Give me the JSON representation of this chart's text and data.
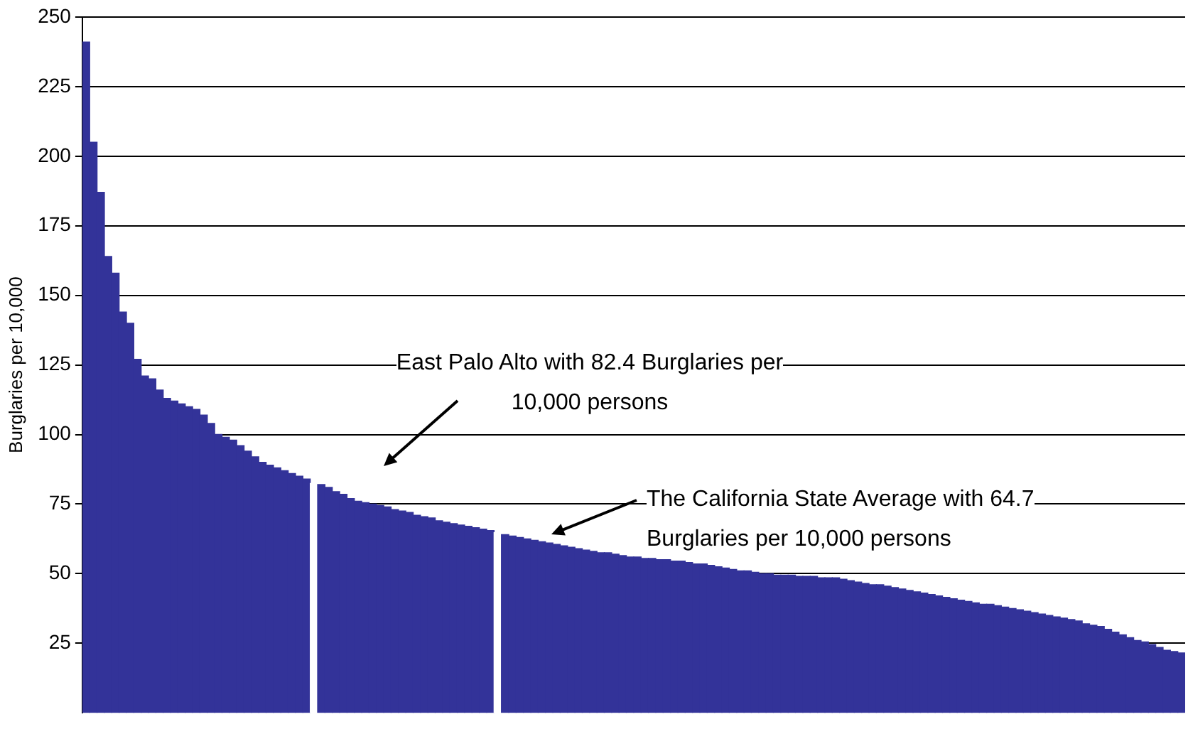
{
  "chart_data": {
    "type": "bar",
    "ylabel": "Burglaries per 10,000",
    "categories": [
      null,
      null,
      null,
      null,
      null,
      null,
      null,
      null,
      null,
      null,
      null,
      null,
      null,
      null,
      null,
      null,
      null,
      null,
      null,
      null,
      null,
      null,
      null,
      null,
      null,
      null,
      null,
      null,
      null,
      null,
      null,
      null,
      null,
      null,
      null,
      null,
      null,
      null,
      null,
      null,
      null,
      null,
      null,
      null,
      null,
      null,
      null,
      null,
      null,
      null,
      null,
      null,
      null,
      null,
      null,
      null,
      null,
      null,
      null,
      null,
      null,
      null,
      null,
      null,
      null,
      null,
      null,
      null,
      null,
      null,
      null,
      null,
      null,
      null,
      null,
      null,
      null,
      null,
      null,
      null,
      null,
      null,
      null,
      null,
      null,
      null,
      null,
      null,
      null,
      null,
      null,
      null,
      null,
      null,
      null,
      null,
      null,
      null,
      null,
      null,
      null,
      null,
      null,
      null,
      null,
      null,
      null,
      null,
      null,
      null,
      null,
      null,
      null,
      null,
      null,
      null,
      null,
      null,
      null,
      null,
      null,
      null,
      null,
      null,
      null,
      null,
      null,
      null,
      null,
      null,
      null,
      null,
      null,
      null,
      null,
      null,
      null,
      null,
      null,
      null,
      null,
      null,
      null,
      null,
      null,
      null,
      null,
      null,
      null,
      null
    ],
    "values": [
      241,
      205,
      187,
      164,
      158,
      144,
      140,
      127,
      121,
      120,
      116,
      113,
      112,
      111,
      110,
      109,
      107,
      104,
      100,
      99,
      98,
      96,
      94,
      92,
      90,
      89,
      88,
      87,
      86,
      85,
      84,
      82.4,
      82,
      81,
      79.5,
      78.5,
      77,
      76,
      75.5,
      75,
      74.5,
      74,
      73,
      72.5,
      72,
      71,
      70.5,
      70,
      69,
      68.5,
      68,
      67.5,
      67,
      66.5,
      66,
      65.5,
      64.7,
      64,
      63.5,
      63,
      62.5,
      62,
      61.5,
      61,
      60.5,
      60,
      59.5,
      59,
      58.5,
      58,
      57.5,
      57.5,
      57,
      56.5,
      56,
      56,
      55.5,
      55.5,
      55,
      55,
      54.5,
      54.5,
      54,
      53.5,
      53.5,
      53,
      52.5,
      52,
      51.5,
      51,
      51,
      50.5,
      50,
      50,
      49.5,
      49.5,
      49.5,
      49,
      49,
      49,
      48.5,
      48.5,
      48.5,
      48,
      47.5,
      47,
      46.5,
      46,
      46,
      45.5,
      45,
      44.5,
      44,
      43.5,
      43,
      42.5,
      42,
      41.5,
      41,
      40.5,
      40,
      39.5,
      39,
      39,
      38.5,
      38,
      37.5,
      37,
      36.5,
      36,
      35.5,
      35,
      34.5,
      34,
      33.5,
      33,
      32,
      31.5,
      31,
      30,
      29,
      28,
      27,
      26,
      25.5,
      24.5,
      23.5,
      22.5,
      22,
      21.5
    ],
    "colors": [
      "#333399",
      "#333399",
      "#333399",
      "#333399",
      "#333399",
      "#333399",
      "#333399",
      "#333399",
      "#333399",
      "#333399",
      "#333399",
      "#333399",
      "#333399",
      "#333399",
      "#333399",
      "#333399",
      "#333399",
      "#333399",
      "#333399",
      "#333399",
      "#333399",
      "#333399",
      "#333399",
      "#333399",
      "#333399",
      "#333399",
      "#333399",
      "#333399",
      "#333399",
      "#333399",
      "#333399",
      "#ffffff",
      "#333399",
      "#333399",
      "#333399",
      "#333399",
      "#333399",
      "#333399",
      "#333399",
      "#333399",
      "#333399",
      "#333399",
      "#333399",
      "#333399",
      "#333399",
      "#333399",
      "#333399",
      "#333399",
      "#333399",
      "#333399",
      "#333399",
      "#333399",
      "#333399",
      "#333399",
      "#333399",
      "#333399",
      "#ffffff",
      "#333399",
      "#333399",
      "#333399",
      "#333399",
      "#333399",
      "#333399",
      "#333399",
      "#333399",
      "#333399",
      "#333399",
      "#333399",
      "#333399",
      "#333399",
      "#333399",
      "#333399",
      "#333399",
      "#333399",
      "#333399",
      "#333399",
      "#333399",
      "#333399",
      "#333399",
      "#333399",
      "#333399",
      "#333399",
      "#333399",
      "#333399",
      "#333399",
      "#333399",
      "#333399",
      "#333399",
      "#333399",
      "#333399",
      "#333399",
      "#333399",
      "#333399",
      "#333399",
      "#333399",
      "#333399",
      "#333399",
      "#333399",
      "#333399",
      "#333399",
      "#333399",
      "#333399",
      "#333399",
      "#333399",
      "#333399",
      "#333399",
      "#333399",
      "#333399",
      "#333399",
      "#333399",
      "#333399",
      "#333399",
      "#333399",
      "#333399",
      "#333399",
      "#333399",
      "#333399",
      "#333399",
      "#333399",
      "#333399",
      "#333399",
      "#333399",
      "#333399",
      "#333399",
      "#333399",
      "#333399",
      "#333399",
      "#333399",
      "#333399",
      "#333399",
      "#333399",
      "#333399",
      "#333399",
      "#333399",
      "#333399",
      "#333399",
      "#333399",
      "#333399",
      "#333399",
      "#333399",
      "#333399",
      "#333399",
      "#333399",
      "#333399",
      "#333399",
      "#333399",
      "#333399",
      "#333399",
      "#333399",
      "#333399"
    ],
    "ylim": [
      0,
      250
    ],
    "yticks": [
      25,
      50,
      75,
      100,
      125,
      150,
      175,
      200,
      225,
      250
    ],
    "grid": "y",
    "tick_labels": "y",
    "legend": false,
    "annotations": [
      "East Palo Alto with 82.4 Burglaries per 10,000 persons",
      "The California State Average with 64.7 Burglaries per 10,000 persons"
    ]
  }
}
